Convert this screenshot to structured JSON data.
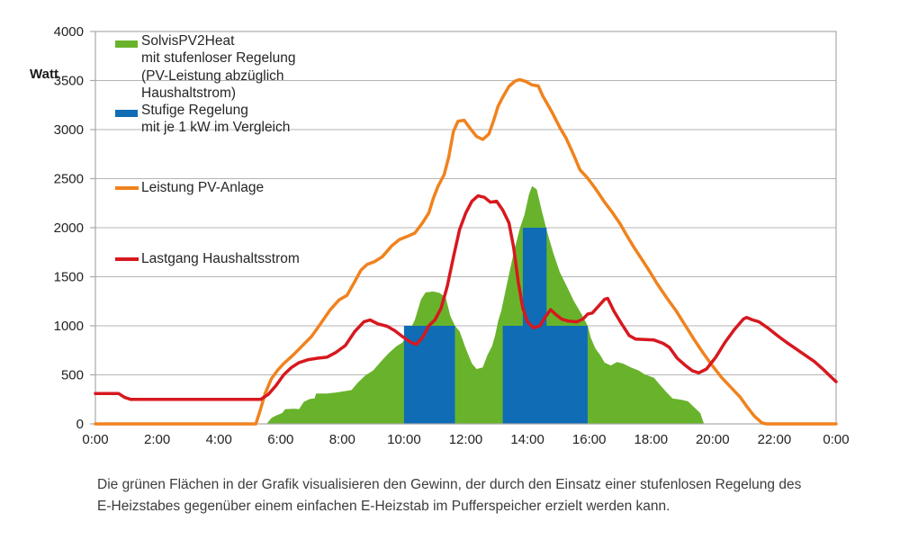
{
  "caption": {
    "line1": "Die grünen Flächen in der Grafik visualisieren den Gewinn, der durch den Einsatz einer stufenlosen Regelung des",
    "line2": "E-Heizstabes gegenüber einem einfachen E-Heizstab im Pufferspeicher erzielt werden kann."
  },
  "legend": {
    "area_label_lines": [
      "SolvisPV2Heat",
      "mit stufenloser Regelung",
      "(PV-Leistung abzüglich",
      "Haushaltstrom)"
    ],
    "bar_label_lines": [
      "Stufige Regelung",
      "mit  je 1 kW im Vergleich"
    ],
    "pv_line_label": "Leistung PV-Anlage",
    "load_line_label": "Lastgang Haushaltsstrom"
  },
  "chart_data": {
    "type": "composite",
    "title": "",
    "ylabel": "Watt",
    "xlabel": "",
    "ylim": [
      0,
      4000
    ],
    "xlim_hours": [
      0,
      24
    ],
    "grid": true,
    "legend_position": "top-left-inside",
    "y_ticks": [
      0,
      500,
      1000,
      1500,
      2000,
      2500,
      3000,
      3500,
      4000
    ],
    "x_ticks": [
      {
        "hour": 0,
        "label": "0:00"
      },
      {
        "hour": 2,
        "label": "2:00"
      },
      {
        "hour": 4,
        "label": "4:00"
      },
      {
        "hour": 6,
        "label": "6:00"
      },
      {
        "hour": 8,
        "label": "8:00"
      },
      {
        "hour": 10,
        "label": "10:00"
      },
      {
        "hour": 12,
        "label": "12:00"
      },
      {
        "hour": 14,
        "label": "14:00"
      },
      {
        "hour": 16,
        "label": "16:00"
      },
      {
        "hour": 18,
        "label": "18:00"
      },
      {
        "hour": 20,
        "label": "20:00"
      },
      {
        "hour": 22,
        "label": "22:00"
      },
      {
        "hour": 24,
        "label": "0:00"
      }
    ],
    "colors": {
      "green_area": "#68b32b",
      "blue_bars": "#0f6cb5",
      "orange_line": "#f0821e",
      "red_line": "#d7181f",
      "grid": "#b5b5b5",
      "axis": "#a9a9a9",
      "tick_text": "#222222"
    },
    "series": {
      "pv_area_gain": {
        "label": "SolvisPV2Heat mit stufenloser Regelung (PV-Leistung abzüglich Haushaltstrom)",
        "type": "area",
        "color": "#68b32b",
        "points": [
          [
            5.55,
            0
          ],
          [
            5.7,
            60
          ],
          [
            5.85,
            85
          ],
          [
            6.05,
            110
          ],
          [
            6.15,
            150
          ],
          [
            6.45,
            155
          ],
          [
            6.6,
            150
          ],
          [
            6.75,
            225
          ],
          [
            6.95,
            255
          ],
          [
            7.1,
            260
          ],
          [
            7.15,
            310
          ],
          [
            7.5,
            310
          ],
          [
            7.8,
            320
          ],
          [
            8.1,
            335
          ],
          [
            8.3,
            345
          ],
          [
            8.5,
            420
          ],
          [
            8.75,
            495
          ],
          [
            9.0,
            545
          ],
          [
            9.25,
            635
          ],
          [
            9.5,
            720
          ],
          [
            9.75,
            790
          ],
          [
            9.95,
            830
          ],
          [
            10.15,
            930
          ],
          [
            10.35,
            1060
          ],
          [
            10.55,
            1270
          ],
          [
            10.7,
            1340
          ],
          [
            10.95,
            1350
          ],
          [
            11.15,
            1335
          ],
          [
            11.35,
            1290
          ],
          [
            11.5,
            1100
          ],
          [
            11.65,
            1000
          ],
          [
            11.8,
            945
          ],
          [
            12.0,
            770
          ],
          [
            12.2,
            615
          ],
          [
            12.35,
            560
          ],
          [
            12.55,
            575
          ],
          [
            12.7,
            700
          ],
          [
            12.85,
            790
          ],
          [
            12.95,
            900
          ],
          [
            13.05,
            1050
          ],
          [
            13.15,
            1150
          ],
          [
            13.35,
            1450
          ],
          [
            13.55,
            1740
          ],
          [
            13.75,
            1990
          ],
          [
            13.9,
            2130
          ],
          [
            14.05,
            2340
          ],
          [
            14.15,
            2425
          ],
          [
            14.3,
            2390
          ],
          [
            14.45,
            2190
          ],
          [
            14.65,
            1940
          ],
          [
            14.85,
            1730
          ],
          [
            15.05,
            1545
          ],
          [
            15.25,
            1420
          ],
          [
            15.5,
            1255
          ],
          [
            15.75,
            1120
          ],
          [
            15.95,
            1000
          ],
          [
            16.05,
            880
          ],
          [
            16.2,
            770
          ],
          [
            16.35,
            705
          ],
          [
            16.5,
            625
          ],
          [
            16.7,
            595
          ],
          [
            16.9,
            630
          ],
          [
            17.1,
            615
          ],
          [
            17.35,
            575
          ],
          [
            17.6,
            545
          ],
          [
            17.8,
            505
          ],
          [
            18.1,
            470
          ],
          [
            18.3,
            395
          ],
          [
            18.5,
            325
          ],
          [
            18.7,
            260
          ],
          [
            19.0,
            245
          ],
          [
            19.2,
            230
          ],
          [
            19.4,
            170
          ],
          [
            19.6,
            110
          ],
          [
            19.72,
            0
          ]
        ]
      },
      "stepped_bars": {
        "label": "Stufige Regelung mit je 1 kW im Vergleich",
        "type": "bars",
        "color": "#0f6cb5",
        "bars": [
          {
            "from": 10.0,
            "to": 11.65,
            "watt": 1000
          },
          {
            "from": 13.2,
            "to": 15.95,
            "watt": 1000
          },
          {
            "from": 13.85,
            "to": 14.62,
            "watt": 2000
          }
        ]
      },
      "pv_power": {
        "label": "Leistung PV-Anlage",
        "type": "line",
        "color": "#f0821e",
        "points": [
          [
            0,
            0
          ],
          [
            5.2,
            0
          ],
          [
            5.35,
            150
          ],
          [
            5.5,
            310
          ],
          [
            5.7,
            460
          ],
          [
            5.9,
            545
          ],
          [
            6.1,
            615
          ],
          [
            6.4,
            700
          ],
          [
            6.7,
            795
          ],
          [
            7.0,
            890
          ],
          [
            7.25,
            1000
          ],
          [
            7.6,
            1160
          ],
          [
            7.9,
            1265
          ],
          [
            8.15,
            1310
          ],
          [
            8.4,
            1450
          ],
          [
            8.6,
            1565
          ],
          [
            8.8,
            1625
          ],
          [
            9.05,
            1655
          ],
          [
            9.3,
            1705
          ],
          [
            9.6,
            1815
          ],
          [
            9.85,
            1880
          ],
          [
            10.1,
            1910
          ],
          [
            10.35,
            1945
          ],
          [
            10.6,
            2050
          ],
          [
            10.8,
            2150
          ],
          [
            10.95,
            2300
          ],
          [
            11.1,
            2420
          ],
          [
            11.3,
            2540
          ],
          [
            11.45,
            2720
          ],
          [
            11.6,
            2980
          ],
          [
            11.75,
            3085
          ],
          [
            11.95,
            3095
          ],
          [
            12.15,
            3010
          ],
          [
            12.35,
            2930
          ],
          [
            12.55,
            2900
          ],
          [
            12.75,
            2955
          ],
          [
            12.9,
            3090
          ],
          [
            13.05,
            3240
          ],
          [
            13.2,
            3330
          ],
          [
            13.4,
            3440
          ],
          [
            13.6,
            3495
          ],
          [
            13.75,
            3510
          ],
          [
            13.95,
            3490
          ],
          [
            14.15,
            3455
          ],
          [
            14.35,
            3445
          ],
          [
            14.5,
            3340
          ],
          [
            14.7,
            3230
          ],
          [
            14.85,
            3145
          ],
          [
            15.05,
            3020
          ],
          [
            15.25,
            2915
          ],
          [
            15.5,
            2740
          ],
          [
            15.7,
            2590
          ],
          [
            15.95,
            2505
          ],
          [
            16.2,
            2400
          ],
          [
            16.5,
            2260
          ],
          [
            16.75,
            2155
          ],
          [
            17.0,
            2040
          ],
          [
            17.2,
            1930
          ],
          [
            17.45,
            1800
          ],
          [
            17.7,
            1680
          ],
          [
            17.95,
            1560
          ],
          [
            18.2,
            1430
          ],
          [
            18.5,
            1290
          ],
          [
            18.8,
            1160
          ],
          [
            19.1,
            1010
          ],
          [
            19.4,
            860
          ],
          [
            19.7,
            720
          ],
          [
            20.0,
            590
          ],
          [
            20.3,
            470
          ],
          [
            20.6,
            370
          ],
          [
            20.9,
            270
          ],
          [
            21.1,
            180
          ],
          [
            21.35,
            80
          ],
          [
            21.6,
            10
          ],
          [
            21.75,
            0
          ],
          [
            24,
            0
          ]
        ]
      },
      "household_load": {
        "label": "Lastgang Haushaltsstrom",
        "type": "line",
        "color": "#d7181f",
        "points": [
          [
            0,
            310
          ],
          [
            0.75,
            310
          ],
          [
            0.95,
            270
          ],
          [
            1.15,
            250
          ],
          [
            5.35,
            250
          ],
          [
            5.6,
            300
          ],
          [
            5.85,
            390
          ],
          [
            6.1,
            500
          ],
          [
            6.35,
            575
          ],
          [
            6.6,
            625
          ],
          [
            6.9,
            655
          ],
          [
            7.2,
            670
          ],
          [
            7.5,
            680
          ],
          [
            7.8,
            730
          ],
          [
            8.1,
            800
          ],
          [
            8.4,
            940
          ],
          [
            8.7,
            1040
          ],
          [
            8.9,
            1060
          ],
          [
            9.15,
            1020
          ],
          [
            9.45,
            995
          ],
          [
            9.7,
            950
          ],
          [
            9.95,
            890
          ],
          [
            10.2,
            835
          ],
          [
            10.4,
            810
          ],
          [
            10.6,
            880
          ],
          [
            10.8,
            1000
          ],
          [
            11.0,
            1060
          ],
          [
            11.2,
            1180
          ],
          [
            11.4,
            1400
          ],
          [
            11.6,
            1700
          ],
          [
            11.8,
            1980
          ],
          [
            12.0,
            2150
          ],
          [
            12.2,
            2270
          ],
          [
            12.4,
            2325
          ],
          [
            12.6,
            2310
          ],
          [
            12.8,
            2260
          ],
          [
            13.0,
            2270
          ],
          [
            13.2,
            2180
          ],
          [
            13.4,
            2050
          ],
          [
            13.55,
            1800
          ],
          [
            13.7,
            1450
          ],
          [
            13.85,
            1180
          ],
          [
            14.0,
            1040
          ],
          [
            14.2,
            980
          ],
          [
            14.4,
            1000
          ],
          [
            14.6,
            1100
          ],
          [
            14.75,
            1165
          ],
          [
            14.9,
            1120
          ],
          [
            15.1,
            1070
          ],
          [
            15.3,
            1050
          ],
          [
            15.6,
            1040
          ],
          [
            15.8,
            1070
          ],
          [
            15.95,
            1120
          ],
          [
            16.1,
            1130
          ],
          [
            16.3,
            1200
          ],
          [
            16.5,
            1270
          ],
          [
            16.6,
            1280
          ],
          [
            16.8,
            1150
          ],
          [
            17.05,
            1020
          ],
          [
            17.3,
            900
          ],
          [
            17.5,
            865
          ],
          [
            17.8,
            860
          ],
          [
            18.1,
            855
          ],
          [
            18.4,
            820
          ],
          [
            18.6,
            780
          ],
          [
            18.85,
            670
          ],
          [
            19.1,
            600
          ],
          [
            19.35,
            540
          ],
          [
            19.55,
            520
          ],
          [
            19.8,
            560
          ],
          [
            20.1,
            680
          ],
          [
            20.4,
            830
          ],
          [
            20.7,
            960
          ],
          [
            21.0,
            1070
          ],
          [
            21.1,
            1085
          ],
          [
            21.3,
            1060
          ],
          [
            21.5,
            1040
          ],
          [
            21.8,
            975
          ],
          [
            22.1,
            900
          ],
          [
            22.4,
            830
          ],
          [
            22.7,
            765
          ],
          [
            23.0,
            700
          ],
          [
            23.3,
            635
          ],
          [
            23.55,
            565
          ],
          [
            23.8,
            490
          ],
          [
            24,
            430
          ]
        ]
      }
    }
  }
}
